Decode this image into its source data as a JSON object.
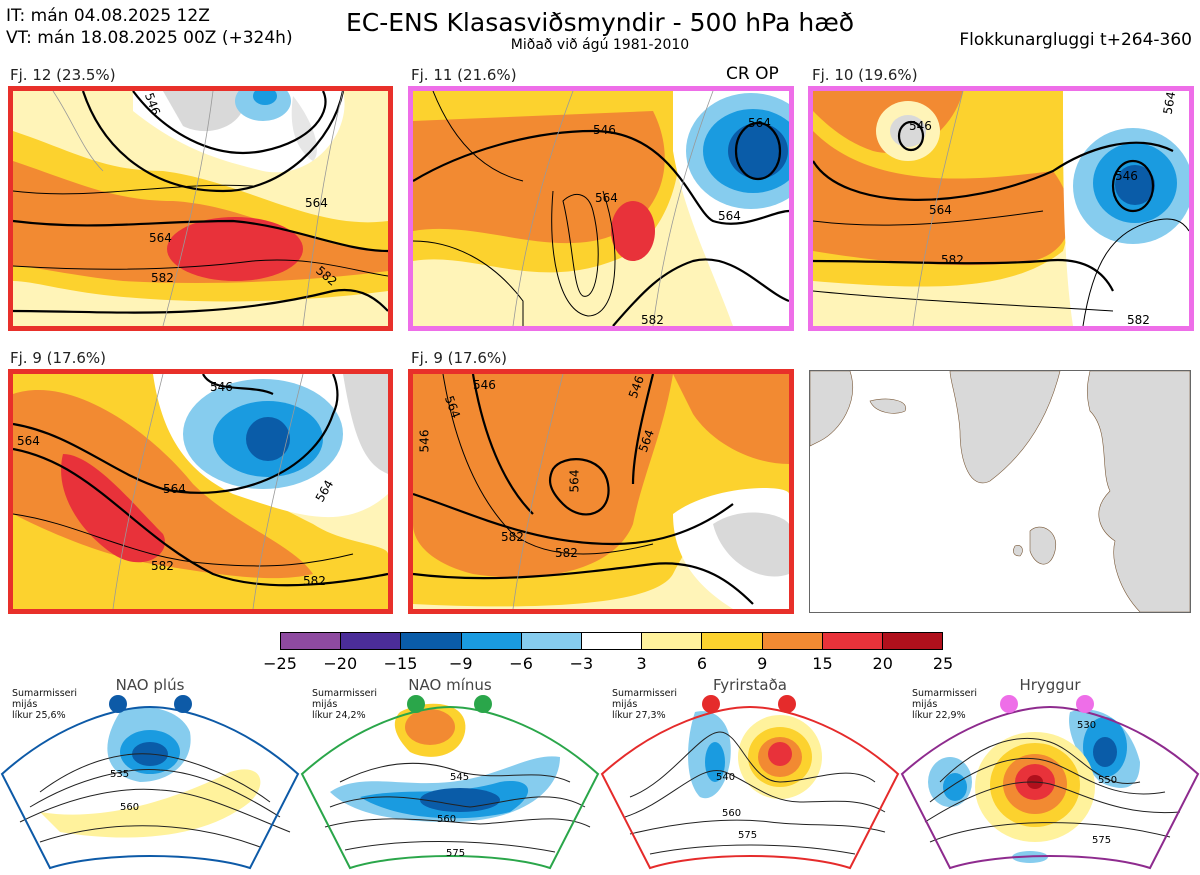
{
  "header": {
    "init_time": "IT: mán 04.08.2025 12Z",
    "valid_time": "VT: mán 18.08.2025 00Z  (+324h)",
    "title": "EC-ENS Klasasviðsmyndir - 500 hPa hæð",
    "subtitle": "Miðað við ágú 1981-2010",
    "window": "Flokkunargluggi t+264-360"
  },
  "operational_marker": "CR OP",
  "clusters": [
    {
      "label": "Fj. 12 (23.5%)",
      "regime": "Fyrirstaða",
      "border_color": "#e8302a",
      "contour_labels": [
        "546",
        "564",
        "564",
        "582",
        "582"
      ]
    },
    {
      "label": "Fj. 11 (21.6%)",
      "regime": "Hryggur",
      "border_color": "#ee6ee8",
      "contour_labels": [
        "546",
        "564",
        "564",
        "564",
        "582"
      ]
    },
    {
      "label": "Fj. 10 (19.6%)",
      "regime": "Hryggur",
      "border_color": "#ee6ee8",
      "contour_labels": [
        "546",
        "546",
        "564",
        "564",
        "582",
        "582"
      ]
    },
    {
      "label": "Fj. 9 (17.6%)",
      "regime": "Fyrirstaða",
      "border_color": "#e8302a",
      "contour_labels": [
        "546",
        "564",
        "564",
        "564",
        "582",
        "582"
      ]
    },
    {
      "label": "Fj. 9 (17.6%)",
      "regime": "Fyrirstaða",
      "border_color": "#e8302a",
      "contour_labels": [
        "546",
        "564",
        "546",
        "546",
        "564",
        "564",
        "582",
        "582"
      ]
    }
  ],
  "colorbar": {
    "colors": [
      "#8e4aa0",
      "#4b2d99",
      "#0a5ca8",
      "#1a9be0",
      "#86ccee",
      "#ffffff",
      "#fff29c",
      "#fcd22e",
      "#f28a32",
      "#e8323a",
      "#b0101c"
    ],
    "ticks": [
      "−25",
      "−20",
      "−15",
      "−9",
      "−6",
      "−3",
      "3",
      "6",
      "9",
      "15",
      "20",
      "25"
    ]
  },
  "regimes": [
    {
      "name": "NAO plús",
      "note": [
        "Sumarmisseri",
        "mijás",
        "líkur 25,6%"
      ],
      "color": "#0d5aa7",
      "contour_labels": [
        "535",
        "560"
      ]
    },
    {
      "name": "NAO mínus",
      "note": [
        "Sumarmisseri",
        "mijás",
        "líkur 24,2%"
      ],
      "color": "#2aa64a",
      "contour_labels": [
        "545",
        "560",
        "575"
      ]
    },
    {
      "name": "Fyrirstaða",
      "note": [
        "Sumarmisseri",
        "mijás",
        "líkur 27,3%"
      ],
      "color": "#e52b2b",
      "contour_labels": [
        "540",
        "560",
        "575"
      ]
    },
    {
      "name": "Hryggur",
      "note": [
        "Sumarmisseri",
        "mijás",
        "líkur 22,9%"
      ],
      "color": "#8e2b8e",
      "contour_labels": [
        "530",
        "550",
        "575"
      ]
    }
  ]
}
